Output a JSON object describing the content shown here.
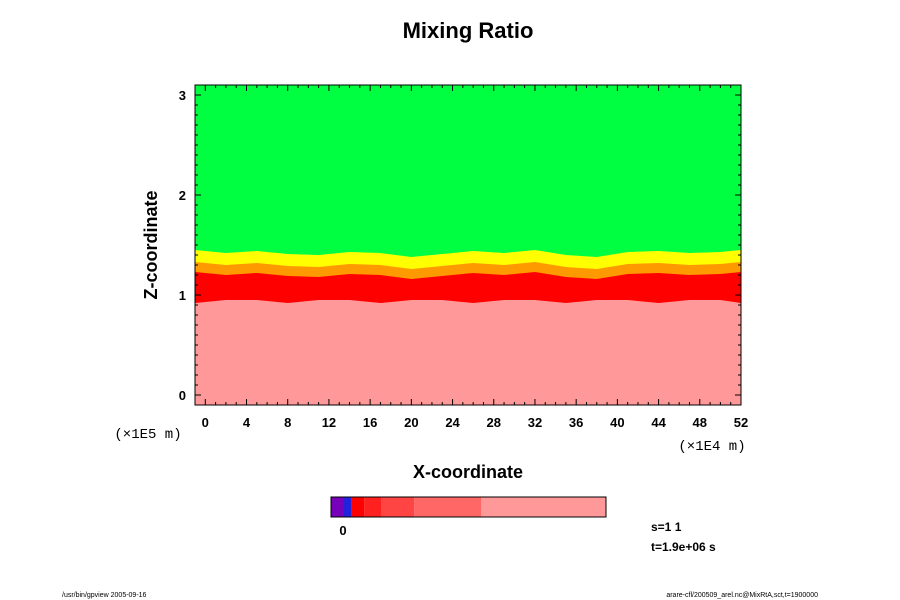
{
  "chart_data": {
    "type": "heatmap",
    "title": "Mixing Ratio",
    "xlabel": "X-coordinate",
    "ylabel": "Z-coordinate",
    "x_scale_label": "(×1E4 m)",
    "y_scale_label": "(×1E5 m)",
    "xlim": [
      -1,
      52
    ],
    "ylim": [
      -0.1,
      3.1
    ],
    "x_ticks": [
      "0",
      "4",
      "8",
      "12",
      "16",
      "20",
      "24",
      "28",
      "32",
      "36",
      "40",
      "44",
      "48",
      "52"
    ],
    "y_ticks": [
      "0",
      "1",
      "2",
      "3"
    ],
    "regions": [
      {
        "name": "upper",
        "color": "#00ff40",
        "z_from": 1.5,
        "z_to": 3.1
      },
      {
        "name": "transition-yellow",
        "color": "#ffff00",
        "z_from": 1.35,
        "z_to": 1.5
      },
      {
        "name": "transition-orange",
        "color": "#ff9900",
        "z_from": 1.25,
        "z_to": 1.35
      },
      {
        "name": "transition-red",
        "color": "#ff0000",
        "z_from": 1.0,
        "z_to": 1.25
      },
      {
        "name": "lower",
        "color": "#ff9999",
        "z_from": -0.1,
        "z_to": 0.95
      }
    ],
    "boundary_profile": {
      "x": [
        -1,
        2,
        5,
        8,
        11,
        14,
        17,
        20,
        23,
        26,
        29,
        32,
        35,
        38,
        41,
        44,
        47,
        50,
        52
      ],
      "z": [
        1.45,
        1.42,
        1.44,
        1.41,
        1.4,
        1.43,
        1.42,
        1.38,
        1.41,
        1.44,
        1.42,
        1.45,
        1.4,
        1.38,
        1.43,
        1.44,
        1.42,
        1.43,
        1.45
      ]
    },
    "colorbar": {
      "colors": [
        "#7700bb",
        "#2222dd",
        "#ff0000",
        "#ff2020",
        "#ff4444",
        "#ff6666",
        "#ff9999"
      ],
      "widths": [
        3,
        2,
        3,
        4,
        8,
        16,
        30
      ],
      "tick_label": "0"
    }
  },
  "info": {
    "s": "s=1 1",
    "t": "t=1.9e+06 s"
  },
  "footer": {
    "left": "/usr/bin/gpview 2005-09-16",
    "right": "arare-cfl/200509_arel.nc@MixRtA,sct,t=1900000"
  }
}
